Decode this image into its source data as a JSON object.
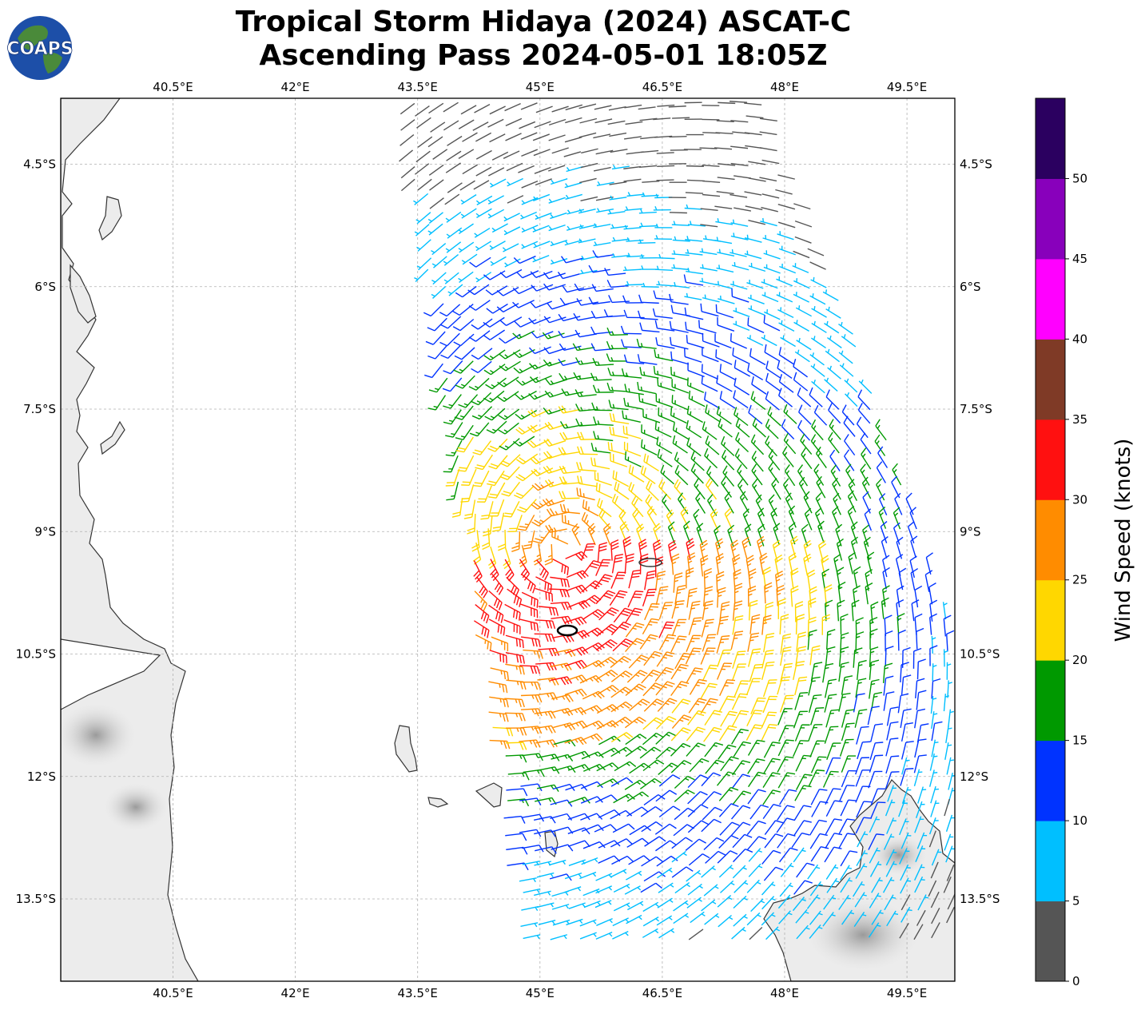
{
  "title": {
    "line1": "Tropical Storm Hidaya (2024) ASCAT-C",
    "line2": "Ascending Pass 2024-05-01 18:05Z"
  },
  "logo": {
    "text": "COAPS",
    "icon": "globe-icon"
  },
  "map": {
    "lon_range": [
      39.58,
      50.5
    ],
    "lat_range": [
      -3.2,
      -14.0
    ],
    "lon_ticks": [
      40.5,
      42,
      43.5,
      45,
      46.5,
      48,
      49.5
    ],
    "lat_ticks": [
      -4.5,
      -6,
      -7.5,
      -9,
      -10.5,
      -12,
      -13.5
    ],
    "lon_tick_labels": [
      "40.5°E",
      "42°E",
      "43.5°E",
      "45°E",
      "46.5°E",
      "48°E",
      "49.5°E"
    ],
    "lat_tick_labels": [
      "4.5°S",
      "6°S",
      "7.5°S",
      "9°S",
      "10.5°S",
      "12°S",
      "13.5°S"
    ],
    "gridlines": true,
    "storm_center": {
      "lon": 45.3,
      "lat": -9.2
    },
    "colors": {
      "land": "#ececec",
      "coast": "#333333",
      "grid": "#b0b0b0",
      "ocean": "#ffffff"
    }
  },
  "colorbar": {
    "label": "Wind Speed (knots)",
    "tick_labels": [
      "0",
      "5",
      "10",
      "15",
      "20",
      "25",
      "30",
      "35",
      "40",
      "45",
      "50"
    ],
    "bins": [
      {
        "min": 0,
        "max": 5,
        "color": "#555555"
      },
      {
        "min": 5,
        "max": 10,
        "color": "#00bfff"
      },
      {
        "min": 10,
        "max": 15,
        "color": "#0033ff"
      },
      {
        "min": 15,
        "max": 20,
        "color": "#009900"
      },
      {
        "min": 20,
        "max": 25,
        "color": "#ffd700"
      },
      {
        "min": 25,
        "max": 30,
        "color": "#ff8c00"
      },
      {
        "min": 30,
        "max": 35,
        "color": "#ff1010"
      },
      {
        "min": 35,
        "max": 40,
        "color": "#7f3a26"
      },
      {
        "min": 40,
        "max": 45,
        "color": "#ff00ff"
      },
      {
        "min": 45,
        "max": 50,
        "color": "#8800bb"
      },
      {
        "min": 50,
        "max": 55,
        "color": "#2b0060"
      }
    ]
  },
  "chart_data": {
    "type": "wind-barb-map",
    "variable": "ASCAT-C ocean surface wind",
    "units": "knots",
    "swath": {
      "corners_lonlat": [
        [
          43.3,
          -3.2
        ],
        [
          47.7,
          -3.2
        ],
        [
          50.5,
          -11.5
        ],
        [
          50.5,
          -14.0
        ],
        [
          44.7,
          -14.0
        ],
        [
          43.3,
          -3.5
        ]
      ]
    },
    "wind_field": {
      "center": [
        45.3,
        -9.2
      ],
      "max_speed_kt": 34,
      "quadrant_notes": "Strongest winds (30-35 kt) near 44.8E-45.5E, 9.5S-10.9S; 20-30 kt band south and east of center; 5-15 kt to the north"
    }
  }
}
